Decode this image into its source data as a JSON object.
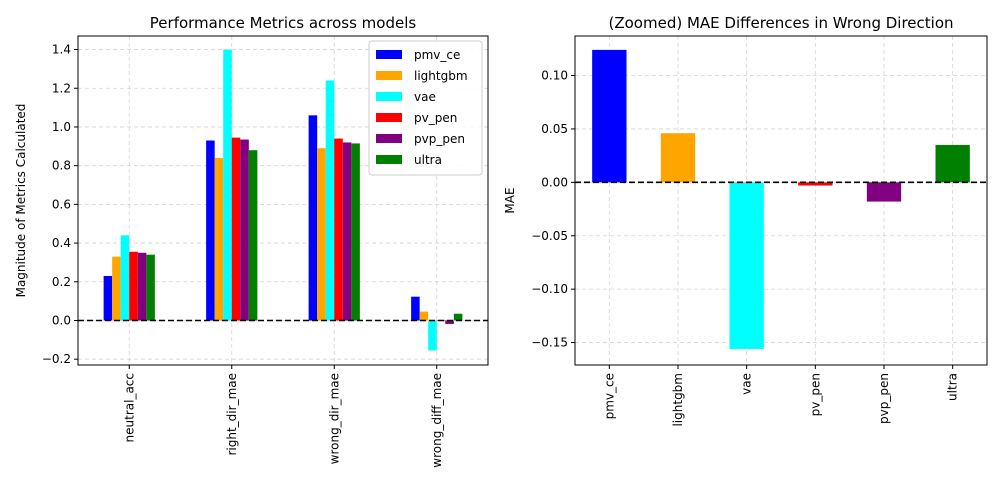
{
  "chart_data": [
    {
      "type": "bar",
      "title": "Performance Metrics across models",
      "xlabel": "",
      "ylabel": "Magnitude of Metrics Calculated",
      "categories": [
        "neutral_acc",
        "right_dir_mae",
        "wrong_dir_mae",
        "wrong_diff_mae"
      ],
      "ylim": [
        -0.23,
        1.47
      ],
      "yticks": [
        -0.2,
        0.0,
        0.2,
        0.4,
        0.6,
        0.8,
        1.0,
        1.2,
        1.4
      ],
      "ytick_labels": [
        "−0.2",
        "0.0",
        "0.2",
        "0.4",
        "0.6",
        "0.8",
        "1.0",
        "1.2",
        "1.4"
      ],
      "grid": true,
      "zero_line": "dashed",
      "legend_position": "top-right",
      "series": [
        {
          "name": "pmv_ce",
          "color": "#0000ff",
          "values": [
            0.23,
            0.93,
            1.06,
            0.123
          ]
        },
        {
          "name": "lightgbm",
          "color": "#ffa500",
          "values": [
            0.33,
            0.84,
            0.89,
            0.046
          ]
        },
        {
          "name": "vae",
          "color": "#00ffff",
          "values": [
            0.44,
            1.4,
            1.24,
            -0.155
          ]
        },
        {
          "name": "pv_pen",
          "color": "#ff0000",
          "values": [
            0.355,
            0.945,
            0.94,
            -0.003
          ]
        },
        {
          "name": "pvp_pen",
          "color": "#800080",
          "values": [
            0.35,
            0.935,
            0.92,
            -0.018
          ]
        },
        {
          "name": "ultra",
          "color": "#008000",
          "values": [
            0.34,
            0.88,
            0.915,
            0.035
          ]
        }
      ]
    },
    {
      "type": "bar",
      "title": "(Zoomed) MAE Differences in Wrong Direction",
      "xlabel": "",
      "ylabel": "MAE",
      "categories": [
        "pmv_ce",
        "lightgbm",
        "vae",
        "pv_pen",
        "pvp_pen",
        "ultra"
      ],
      "values": [
        0.124,
        0.046,
        -0.156,
        -0.003,
        -0.018,
        0.035
      ],
      "colors": [
        "#0000ff",
        "#ffa500",
        "#00ffff",
        "#ff0000",
        "#800080",
        "#008000"
      ],
      "ylim": [
        -0.171,
        0.137
      ],
      "yticks": [
        -0.15,
        -0.1,
        -0.05,
        0.0,
        0.05,
        0.1
      ],
      "ytick_labels": [
        "−0.15",
        "−0.10",
        "−0.05",
        "0.00",
        "0.05",
        "0.10"
      ],
      "grid": true,
      "zero_line": "dashed"
    }
  ]
}
